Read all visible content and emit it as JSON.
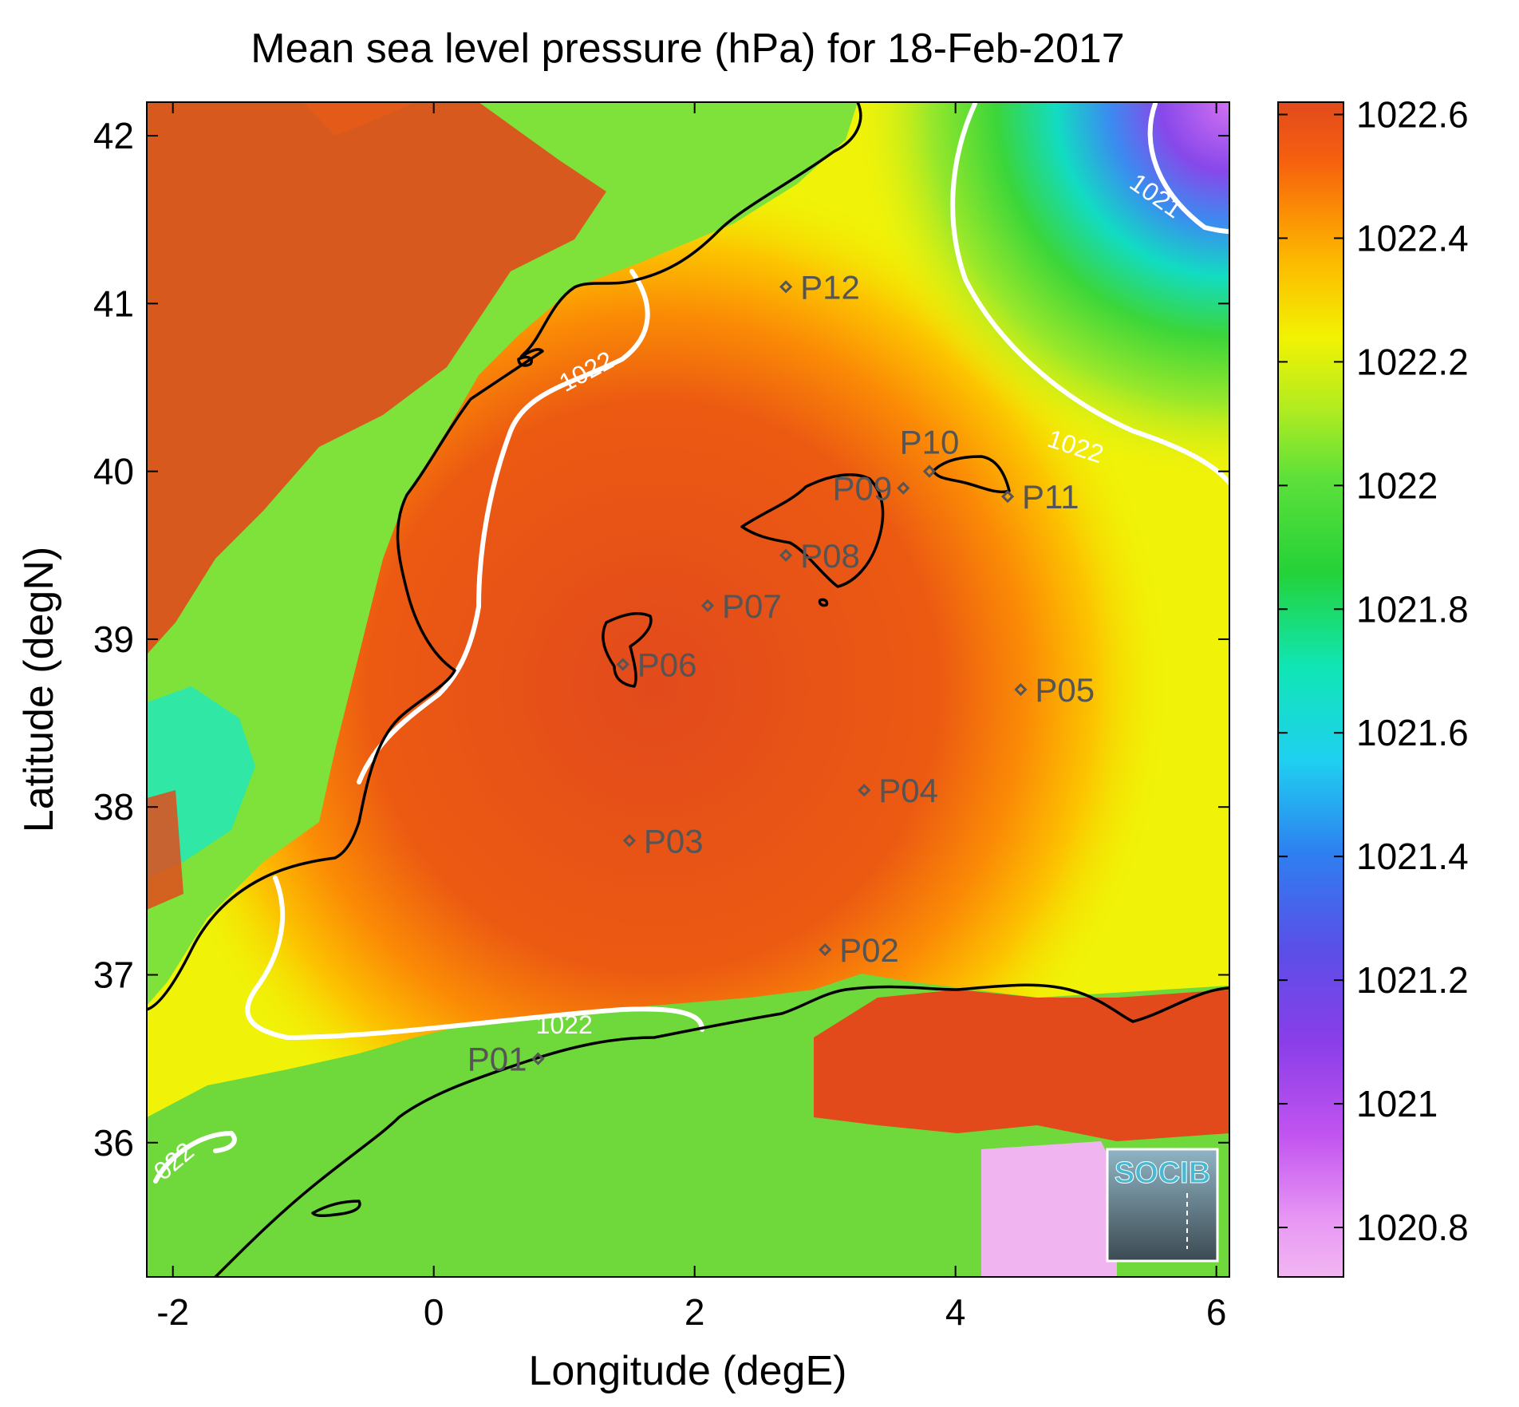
{
  "title": "Mean sea level pressure (hPa) for 18-Feb-2017",
  "xlabel": "Longitude (degE)",
  "ylabel": "Latitude (degN)",
  "map": {
    "lon_range": [
      -2.2,
      6.1
    ],
    "lat_range": [
      35.2,
      42.2
    ],
    "x_ticks": [
      {
        "value": -2,
        "label": "-2"
      },
      {
        "value": 0,
        "label": "0"
      },
      {
        "value": 2,
        "label": "2"
      },
      {
        "value": 4,
        "label": "4"
      },
      {
        "value": 6,
        "label": "6"
      }
    ],
    "y_ticks": [
      {
        "value": 36,
        "label": "36"
      },
      {
        "value": 37,
        "label": "37"
      },
      {
        "value": 38,
        "label": "38"
      },
      {
        "value": 39,
        "label": "39"
      },
      {
        "value": 40,
        "label": "40"
      },
      {
        "value": 41,
        "label": "41"
      },
      {
        "value": 42,
        "label": "42"
      }
    ]
  },
  "colorbar": {
    "range": [
      1020.72,
      1022.62
    ],
    "ticks": [
      {
        "value": 1022.6,
        "label": "1022.6"
      },
      {
        "value": 1022.4,
        "label": "1022.4"
      },
      {
        "value": 1022.2,
        "label": "1022.2"
      },
      {
        "value": 1022.0,
        "label": "1022"
      },
      {
        "value": 1021.8,
        "label": "1021.8"
      },
      {
        "value": 1021.6,
        "label": "1021.6"
      },
      {
        "value": 1021.4,
        "label": "1021.4"
      },
      {
        "value": 1021.2,
        "label": "1021.2"
      },
      {
        "value": 1021.0,
        "label": "1021"
      },
      {
        "value": 1020.8,
        "label": "1020.8"
      }
    ]
  },
  "stations": [
    {
      "label": "P01",
      "lon": 0.8,
      "lat": 36.5,
      "side": "left"
    },
    {
      "label": "P02",
      "lon": 3.0,
      "lat": 37.15,
      "side": "right"
    },
    {
      "label": "P03",
      "lon": 1.5,
      "lat": 37.8,
      "side": "right"
    },
    {
      "label": "P04",
      "lon": 3.3,
      "lat": 38.1,
      "side": "right"
    },
    {
      "label": "P05",
      "lon": 4.5,
      "lat": 38.7,
      "side": "right"
    },
    {
      "label": "P06",
      "lon": 1.45,
      "lat": 38.85,
      "side": "right"
    },
    {
      "label": "P07",
      "lon": 2.1,
      "lat": 39.2,
      "side": "right"
    },
    {
      "label": "P08",
      "lon": 2.7,
      "lat": 39.5,
      "side": "right"
    },
    {
      "label": "P09",
      "lon": 3.6,
      "lat": 39.9,
      "side": "left"
    },
    {
      "label": "P10",
      "lon": 3.8,
      "lat": 40.0,
      "side": "above"
    },
    {
      "label": "P11",
      "lon": 4.4,
      "lat": 39.85,
      "side": "right"
    },
    {
      "label": "P12",
      "lon": 2.7,
      "lat": 41.1,
      "side": "right"
    }
  ],
  "contour_labels": [
    {
      "text": "1022",
      "lon": 1.2,
      "lat": 40.55,
      "rotate": -28
    },
    {
      "text": "1022",
      "lon": 4.9,
      "lat": 40.1,
      "rotate": 18
    },
    {
      "text": "1022",
      "lon": 1.0,
      "lat": 36.65,
      "rotate": 0
    },
    {
      "text": "022",
      "lon": -1.95,
      "lat": 35.85,
      "rotate": -40
    },
    {
      "text": "1021",
      "lon": 5.5,
      "lat": 41.6,
      "rotate": 35
    }
  ],
  "logo": {
    "text": "SOCIB",
    "accent": "#49b8d2"
  },
  "colors": {
    "contour": "#ffffff",
    "coast": "#000000",
    "station": "#555555"
  }
}
